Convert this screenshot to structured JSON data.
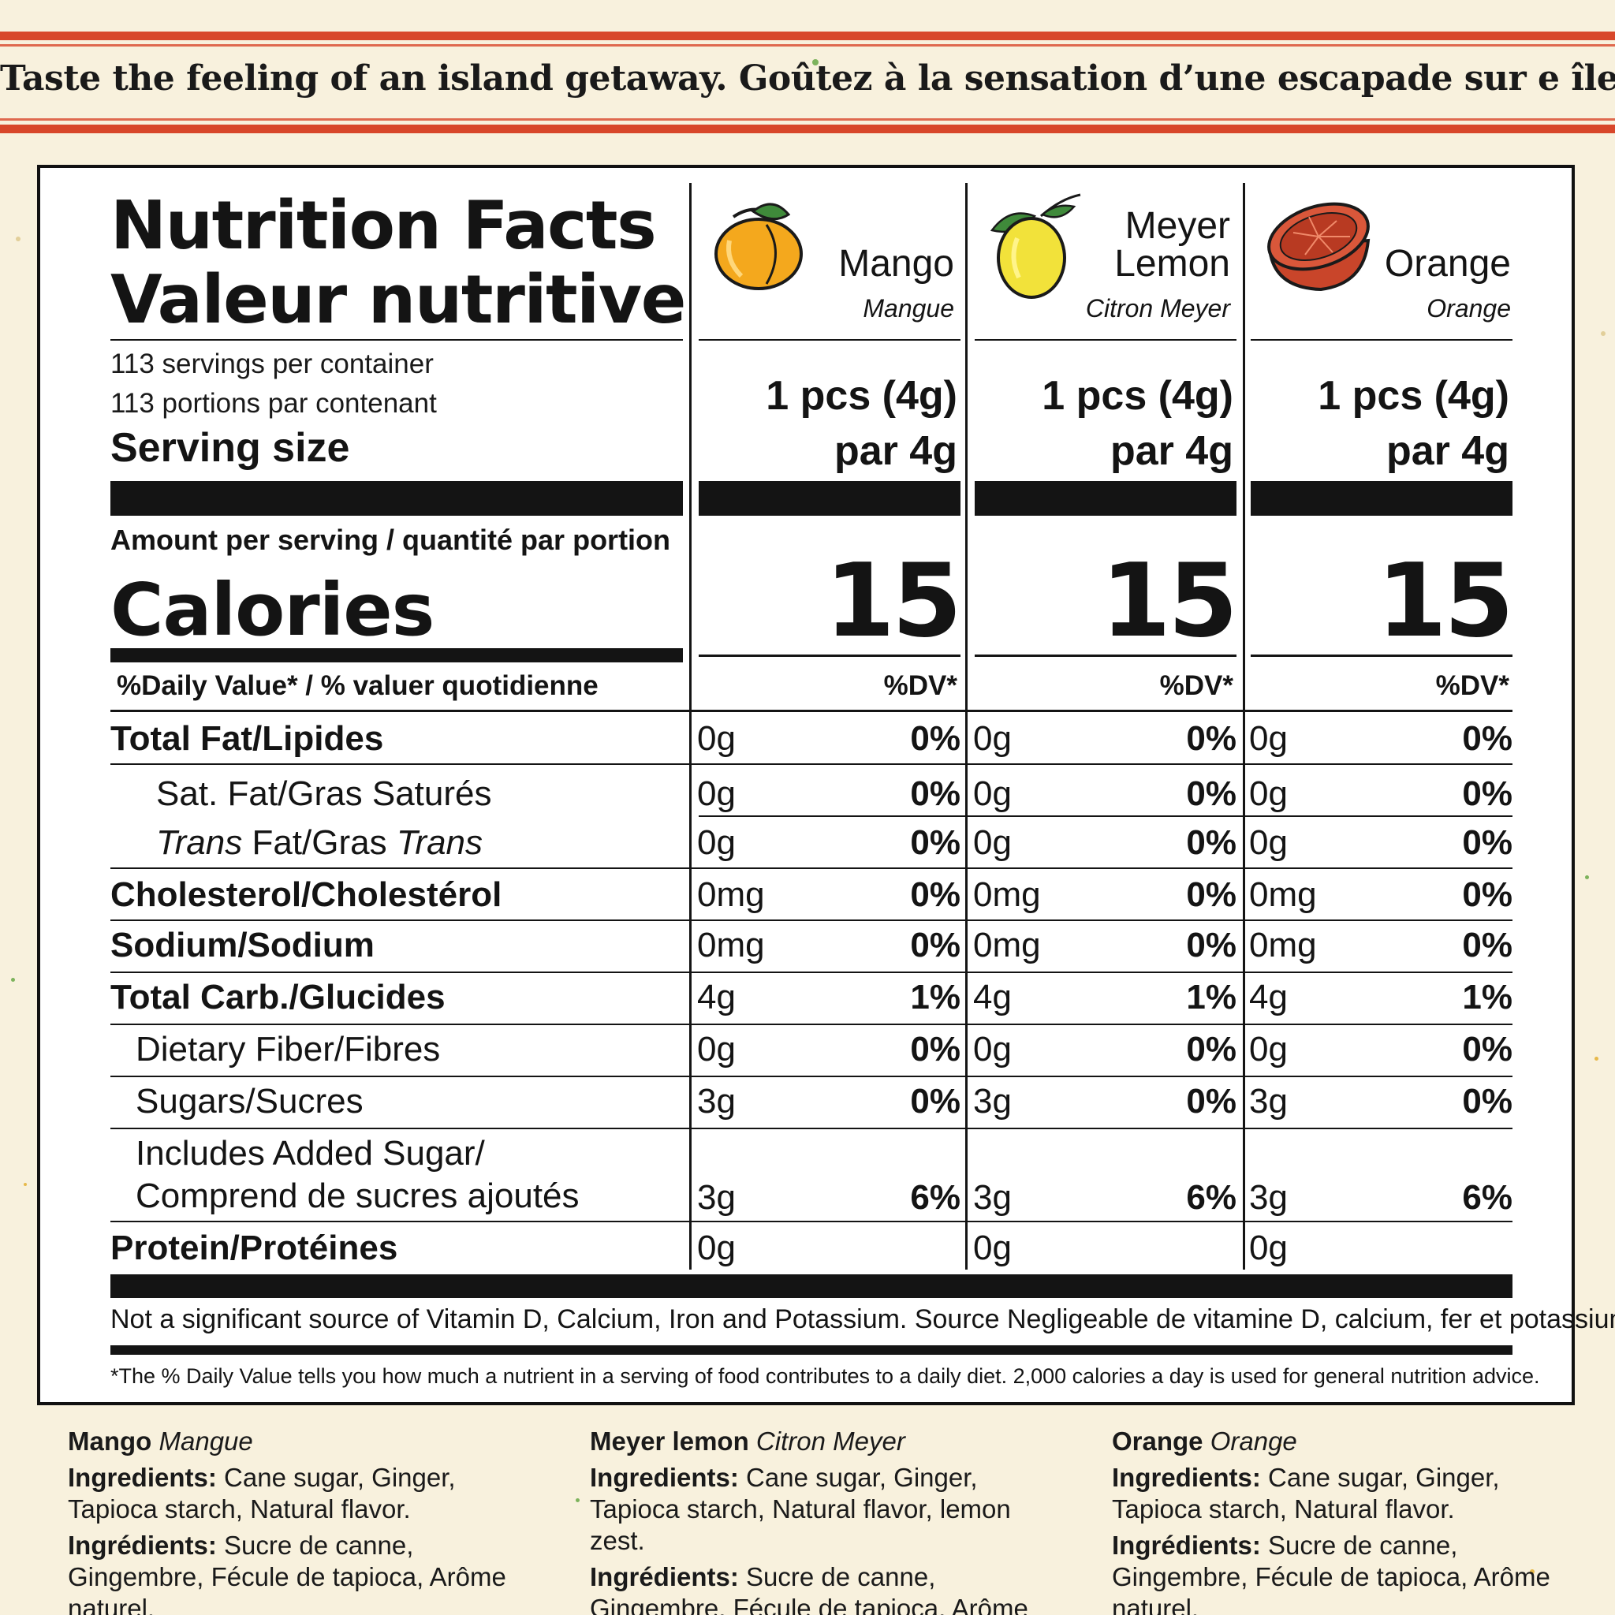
{
  "tagline": "Taste the feeling of an island getaway. Goûtez à la sensation d’une escapade sur e île.",
  "title": {
    "line1": "Nutrition Facts",
    "line2": "Valeur nutritive"
  },
  "servings": {
    "en": "113 servings per container",
    "fr": "113 portions par contenant",
    "size_label": "Serving size"
  },
  "flavors": [
    {
      "name": "Mango",
      "name_fr": "Mangue",
      "icon": "mango-icon",
      "size": "1 pcs (4g)",
      "size_fr": "par 4g",
      "calories": "15",
      "dv_head": "%DV*"
    },
    {
      "name_line1": "Meyer",
      "name": "Lemon",
      "name_fr": "Citron Meyer",
      "icon": "lemon-icon",
      "size": "1 pcs (4g)",
      "size_fr": "par 4g",
      "calories": "15",
      "dv_head": "%DV*"
    },
    {
      "name": "Orange",
      "name_fr": "Orange",
      "icon": "orange-icon",
      "size": "1 pcs (4g)",
      "size_fr": "par 4g",
      "calories": "15",
      "dv_head": "%DV*"
    }
  ],
  "amount_per_serving": "Amount per serving / quantité par portion",
  "calories_label": "Calories",
  "dv_label": "%Daily Value* / % valuer quotidienne",
  "nutrients": [
    {
      "label": "Total Fat/Lipides",
      "amount": "0g",
      "pct": "0%"
    },
    {
      "label": "Sat. Fat/Gras Saturés",
      "amount": "0g",
      "pct": "0%"
    },
    {
      "label_it1": "Trans",
      "label_mid": " Fat/Gras ",
      "label_it2": "Trans",
      "amount": "0g",
      "pct": "0%"
    },
    {
      "label": "Cholesterol/Cholestérol",
      "amount": "0mg",
      "pct": "0%"
    },
    {
      "label": "Sodium/Sodium",
      "amount": "0mg",
      "pct": "0%"
    },
    {
      "label": "Total Carb./Glucides",
      "amount": "4g",
      "pct": "1%"
    },
    {
      "label": "Dietary Fiber/Fibres",
      "amount": "0g",
      "pct": "0%"
    },
    {
      "label": "Sugars/Sucres",
      "amount": "3g",
      "pct": "0%"
    },
    {
      "label": "Includes Added Sugar/",
      "label2": "Comprend de sucres ajoutés",
      "amount": "3g",
      "pct": "6%"
    },
    {
      "label": "Protein/Protéines",
      "amount": "0g",
      "pct": ""
    }
  ],
  "footnote_vitamins": "Not a significant source of Vitamin D, Calcium, Iron and Potassium. Source Negligeable de vitamine D, calcium, fer et potassium.",
  "footnote_dv": "*The % Daily Value tells you how much a nutrient in a serving of food contributes to a daily diet. 2,000 calories a day is used for general nutrition advice.",
  "ingredients": [
    {
      "name": "Mango",
      "name_fr": "Mangue",
      "label_en": "Ingredients:",
      "text_en": " Cane sugar, Ginger, Tapioca starch, Natural flavor.",
      "label_fr": "Ingrédients:",
      "text_fr": " Sucre de canne, Gingembre, Fécule de tapioca, Arôme naturel."
    },
    {
      "name": "Meyer lemon",
      "name_fr": "Citron Meyer",
      "label_en": "Ingredients:",
      "text_en": " Cane sugar, Ginger, Tapioca starch, Natural flavor, lemon zest.",
      "label_fr": "Ingrédients:",
      "text_fr": " Sucre de canne, Gingembre, Fécule de tapioca, Arôme naturel, Zest de citron."
    },
    {
      "name": "Orange",
      "name_fr": "Orange",
      "label_en": "Ingredients:",
      "text_en": " Cane sugar, Ginger, Tapioca starch, Natural flavor.",
      "label_fr": "Ingrédients:",
      "text_fr": " Sucre de canne, Gingembre, Fécule de tapioca, Arôme naturel."
    }
  ],
  "colors": {
    "background": "#f8f1dd",
    "accent_red": "#d8472a",
    "ink": "#141414",
    "mango": "#f4a81d",
    "lemon": "#f2e23a",
    "orange": "#c9452a"
  }
}
